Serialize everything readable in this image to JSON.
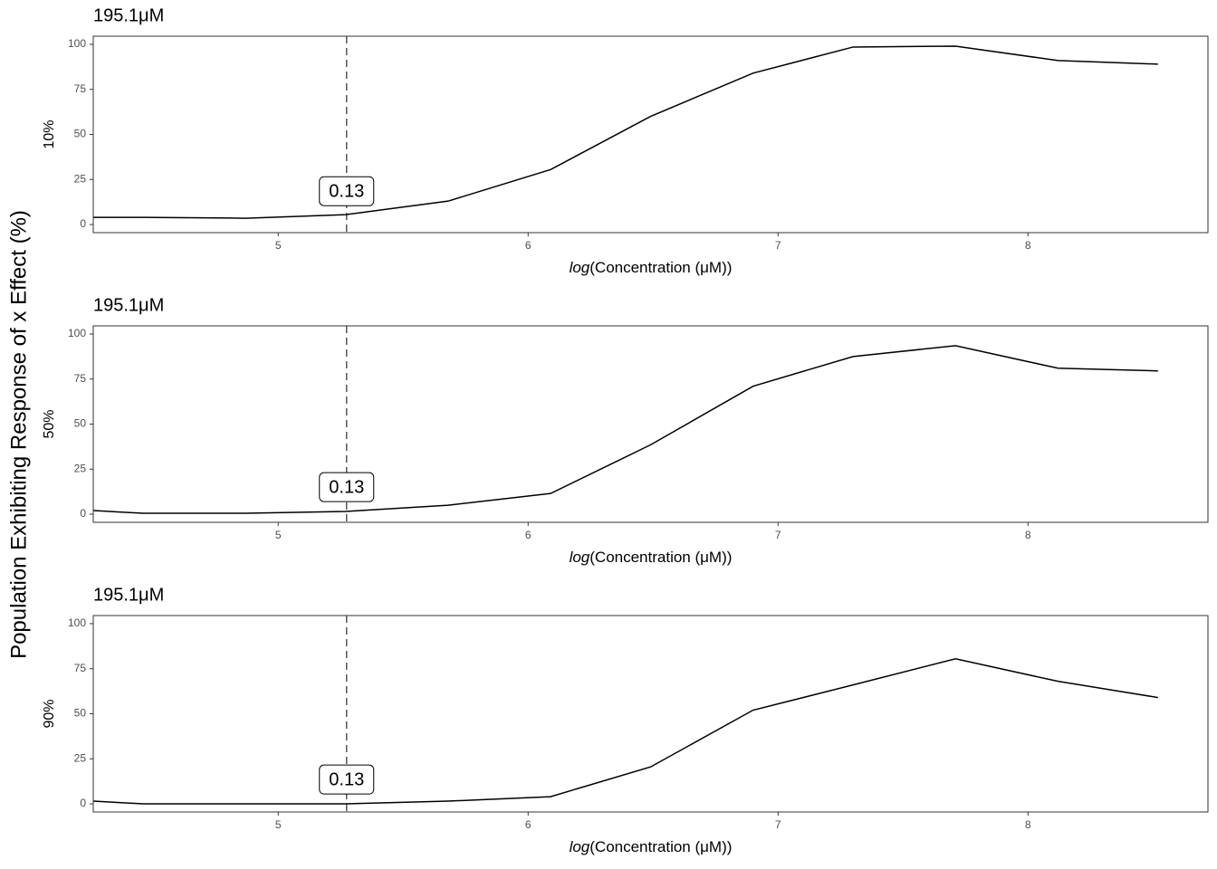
{
  "ylabel": "Population Exhibiting Response of x Effect (%)",
  "chart_data": [
    {
      "type": "line",
      "title": "195.1μM",
      "ylabel": "10%",
      "xlabel_fn": "log",
      "xlabel": "(Concentration (μM))",
      "x": [
        4.26,
        4.46,
        4.87,
        5.27,
        5.68,
        6.09,
        6.49,
        6.9,
        7.3,
        7.71,
        8.12,
        8.52
      ],
      "values": [
        4,
        4,
        3.5,
        5.5,
        13,
        30.5,
        60,
        84,
        98.5,
        99,
        91,
        89
      ],
      "color": "#000000",
      "xlim": [
        4.26,
        8.72
      ],
      "xticks": [
        5,
        6,
        7,
        8
      ],
      "ylim": [
        -4.5,
        104.5
      ],
      "yticks": [
        0,
        25,
        50,
        75,
        100
      ],
      "vline": 5.2735,
      "annotation": {
        "text": "0.13",
        "x": 5.2735,
        "y": 18.5
      }
    },
    {
      "type": "line",
      "title": "195.1μM",
      "ylabel": "50%",
      "xlabel_fn": "log",
      "xlabel": "(Concentration (μM))",
      "x": [
        4.26,
        4.46,
        4.87,
        5.27,
        5.68,
        6.09,
        6.49,
        6.9,
        7.3,
        7.71,
        8.12,
        8.52
      ],
      "values": [
        2,
        0.5,
        0.5,
        1.5,
        5,
        11.5,
        38.5,
        71,
        87.5,
        93.5,
        81,
        79.5
      ],
      "color": "#000000",
      "xlim": [
        4.26,
        8.72
      ],
      "xticks": [
        5,
        6,
        7,
        8
      ],
      "ylim": [
        -4.5,
        104.5
      ],
      "yticks": [
        0,
        25,
        50,
        75,
        100
      ],
      "vline": 5.2735,
      "annotation": {
        "text": "0.13",
        "x": 5.2735,
        "y": 15
      }
    },
    {
      "type": "line",
      "title": "195.1μM",
      "ylabel": "90%",
      "xlabel_fn": "log",
      "xlabel": "(Concentration (μM))",
      "x": [
        4.26,
        4.46,
        4.87,
        5.27,
        5.68,
        6.09,
        6.49,
        6.9,
        7.3,
        7.71,
        8.12,
        8.52
      ],
      "values": [
        1.5,
        0,
        0,
        0,
        1.5,
        4,
        20.5,
        52,
        66,
        80.5,
        68,
        59
      ],
      "color": "#000000",
      "xlim": [
        4.26,
        8.72
      ],
      "xticks": [
        5,
        6,
        7,
        8
      ],
      "ylim": [
        -4.5,
        104.5
      ],
      "yticks": [
        0,
        25,
        50,
        75,
        100
      ],
      "vline": 5.2735,
      "annotation": {
        "text": "0.13",
        "x": 5.2735,
        "y": 13.5
      }
    }
  ]
}
